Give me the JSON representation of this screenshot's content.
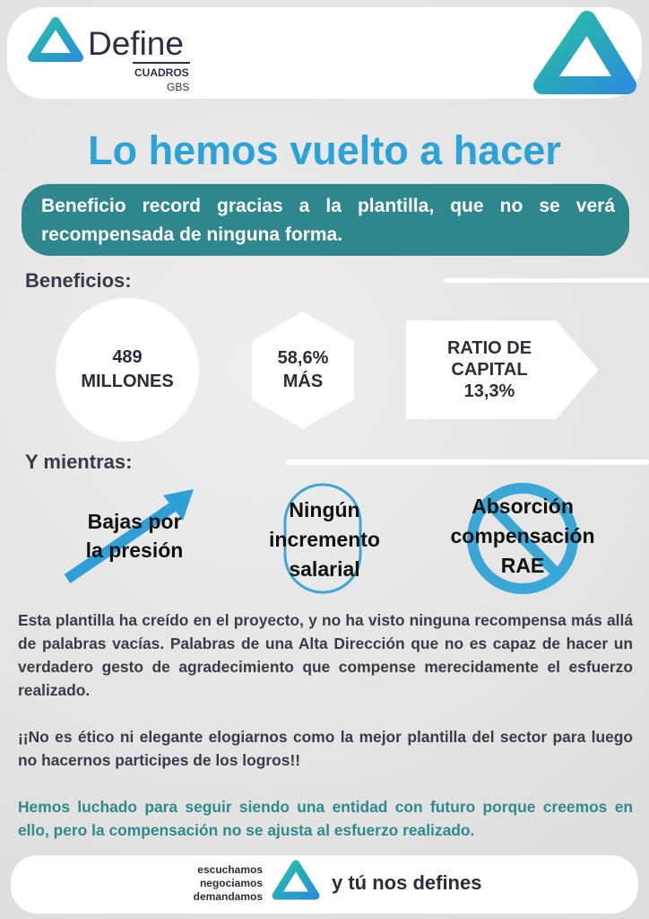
{
  "header": {
    "logo_name": "Define",
    "logo_line1": "CUADROS",
    "logo_line2": "GBS"
  },
  "title": "Lo hemos vuelto a hacer",
  "banner": "Beneficio record gracias a la plantilla, que no se verá recompensada de ninguna forma.",
  "section1": {
    "label": "Beneficios:",
    "stats": [
      {
        "lines": [
          "489",
          "MILLONES"
        ]
      },
      {
        "lines": [
          "58,6%",
          "MÁS"
        ]
      },
      {
        "lines": [
          "RATIO DE",
          "CAPITAL",
          "13,3%"
        ]
      }
    ]
  },
  "section2": {
    "label": "Y mientras:",
    "items": [
      {
        "lines": [
          "Bajas por",
          "la presión"
        ]
      },
      {
        "lines": [
          "Ningún",
          "incremento",
          "salarial"
        ]
      },
      {
        "lines": [
          "Absorción",
          "compensación",
          "RAE"
        ]
      }
    ]
  },
  "paragraphs": [
    "Esta plantilla ha creído en el proyecto, y no ha visto ninguna recompensa más allá de palabras vacías. Palabras de una Alta Dirección que no es capaz de hacer un verdadero gesto de agradecimiento que compense merecidamente el esfuerzo realizado.",
    "¡¡No es ético ni elegante elogiarnos como la mejor plantilla del sector para luego no hacernos participes de los logros!!",
    "Hemos luchado para seguir siendo una entidad con futuro porque creemos en ello, pero la compensación no se ajusta al esfuerzo realizado."
  ],
  "footer": {
    "verbs": [
      "escuchamos",
      "negociamos",
      "demandamos"
    ],
    "slogan": "y tú nos defines"
  }
}
